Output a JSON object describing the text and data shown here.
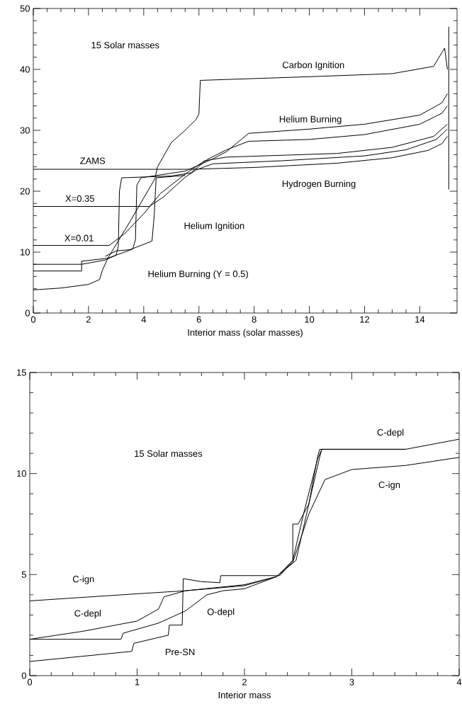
{
  "chart_data": [
    {
      "type": "line",
      "xlabel": "Interior mass (solar masses)",
      "xlim": [
        0,
        15.35
      ],
      "ylim": [
        0,
        50
      ],
      "xticks": [
        0,
        2,
        4,
        6,
        8,
        10,
        12,
        14
      ],
      "yticks": [
        0,
        10,
        20,
        30,
        40,
        50
      ],
      "series": [
        {
          "color": "#000000",
          "x": [
            0,
            5.7,
            8,
            11,
            13,
            14.3,
            14.8,
            15
          ],
          "values": [
            23.6,
            23.6,
            23.9,
            24.6,
            25.5,
            26.7,
            27.8,
            29
          ]
        },
        {
          "color": "#000000",
          "x": [
            0,
            4.2,
            4.7,
            5.5,
            5.9,
            6.5,
            9,
            12,
            13.5,
            14.6,
            15
          ],
          "values": [
            17.5,
            17.5,
            19,
            22.3,
            23.5,
            24.5,
            25,
            25.8,
            26.8,
            28.5,
            30.2
          ]
        },
        {
          "color": "#000000",
          "x": [
            0,
            2.75,
            3.3,
            4,
            4.6,
            5.5,
            6.2,
            7,
            11,
            13,
            14.5,
            15
          ],
          "values": [
            11.1,
            11.1,
            13,
            16.3,
            19.6,
            22.8,
            25,
            25.6,
            26.2,
            27.2,
            29,
            31
          ]
        },
        {
          "color": "#000000",
          "x": [
            0,
            1.75,
            2.6,
            3.0,
            3.08,
            3.12,
            3.2,
            5,
            5.7,
            6.3,
            7,
            7.8,
            10,
            12,
            14,
            14.8,
            15
          ],
          "values": [
            8,
            8,
            8.7,
            9.5,
            11,
            20,
            22.2,
            22.5,
            23,
            25.2,
            26.8,
            28.2,
            28.5,
            29.3,
            31,
            32.8,
            34
          ]
        },
        {
          "color": "#000000",
          "x": [
            0,
            1.75,
            1.75,
            2.7,
            3.3,
            3.6,
            3.7,
            3.75,
            3.9,
            5.5,
            6.5,
            7,
            7.8,
            10,
            12,
            14,
            14.8,
            15
          ],
          "values": [
            6.9,
            6.9,
            8.5,
            9.0,
            10,
            10.5,
            12,
            21,
            22.2,
            23.3,
            25.3,
            26.5,
            29.5,
            30.2,
            31,
            32.5,
            34.5,
            36
          ]
        },
        {
          "color": "#000000",
          "x": [
            2.6,
            3.0,
            3.5,
            4.3,
            4.38,
            4.45,
            5.5
          ],
          "values": [
            9.3,
            10.2,
            10.4,
            11.8,
            16,
            22.2,
            22.6
          ]
        },
        {
          "color": "#000000",
          "x": [
            0,
            1,
            2,
            2.4,
            2.5,
            2.7,
            3.5,
            4.4,
            4.5,
            5,
            5.5,
            5.9,
            6.0,
            6.05,
            10,
            13,
            14.5,
            14.9,
            15
          ],
          "values": [
            3.8,
            4.1,
            4.7,
            5.5,
            7,
            9,
            15,
            22,
            24,
            28,
            30,
            31.8,
            32.7,
            38.2,
            38.8,
            39.3,
            40.5,
            43.5,
            40
          ]
        },
        {
          "color": "#000000",
          "x": [
            15.05,
            15.05
          ],
          "values": [
            20.3,
            47
          ]
        }
      ],
      "annotations": [
        "15 Solar masses",
        "Carbon Ignition",
        "Helium Burning",
        "ZAMS",
        "Hydrogen Burning",
        "X=0.35",
        "Helium Ignition",
        "X=0.01",
        "Helium Burning (Y = 0.5)"
      ]
    },
    {
      "type": "line",
      "xlabel": "Interior mass",
      "xlim": [
        0,
        4
      ],
      "ylim": [
        0,
        15
      ],
      "xticks": [
        0,
        1,
        2,
        3,
        4
      ],
      "yticks": [
        0,
        5,
        10,
        15
      ],
      "series": [
        {
          "color": "#000000",
          "x": [
            0,
            1,
            1.45,
            2,
            2.3,
            2.45,
            2.6,
            2.75,
            3,
            3.5,
            4
          ],
          "values": [
            3.7,
            4.05,
            4.2,
            4.5,
            4.9,
            5.6,
            8,
            9.7,
            10.2,
            10.4,
            10.8
          ]
        },
        {
          "color": "#000000",
          "x": [
            0,
            0.5,
            1,
            1.2,
            1.25,
            1.45,
            2,
            2.3,
            2.45,
            2.55,
            2.68,
            2.72,
            3.5,
            4
          ],
          "values": [
            1.8,
            2.2,
            2.7,
            3.3,
            3.9,
            4.2,
            4.45,
            4.9,
            5.7,
            8,
            10.7,
            11.2,
            11.2,
            11.7
          ]
        },
        {
          "color": "#000000",
          "x": [
            0,
            0.85,
            0.87,
            1.2,
            1.45,
            1.65,
            1.8,
            2,
            2.3,
            2.48,
            2.6,
            2.7,
            2.72,
            3.5
          ],
          "values": [
            1.8,
            1.8,
            2.1,
            2.6,
            3.2,
            4.0,
            4.2,
            4.3,
            4.9,
            5.7,
            8.5,
            10.8,
            11.2,
            11.2
          ]
        },
        {
          "color": "#000000",
          "x": [
            0,
            0.95,
            0.97,
            1.29,
            1.3,
            1.42,
            1.43,
            1.6,
            1.77,
            1.78,
            2.33,
            2.45,
            2.45,
            2.5,
            2.6,
            2.68,
            2.7,
            3.5
          ],
          "values": [
            0.7,
            1.2,
            1.6,
            2.0,
            2.5,
            2.5,
            4.8,
            4.65,
            4.6,
            4.95,
            4.95,
            5.7,
            7.5,
            7.5,
            8.5,
            10.8,
            11.2,
            11.2
          ]
        }
      ],
      "annotations": [
        "15 Solar masses",
        "C-depl",
        "C-ign",
        "C-ign",
        "C-depl",
        "O-depl",
        "Pre-SN"
      ]
    }
  ]
}
